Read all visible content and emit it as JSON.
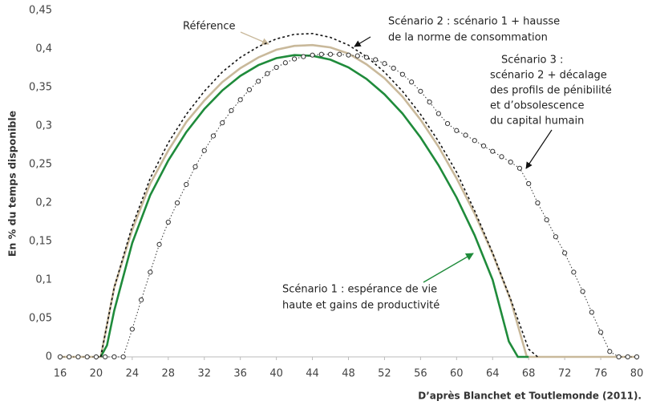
{
  "chart_data": {
    "type": "line",
    "y_label": "En % du temps disponible",
    "source": "D’après Blanchet et Toutlemonde (2011).",
    "xlim": [
      16,
      80
    ],
    "xticks": [
      16,
      20,
      24,
      28,
      32,
      36,
      40,
      44,
      48,
      52,
      56,
      60,
      64,
      68,
      72,
      76,
      80
    ],
    "ylim": [
      0,
      0.45
    ],
    "yticks": [
      0,
      {
        "value": 0.05,
        "label": "0,05"
      },
      {
        "value": 0.1,
        "label": "0,1"
      },
      {
        "value": 0.15,
        "label": "0,15"
      },
      {
        "value": 0.2,
        "label": "0,2"
      },
      {
        "value": 0.25,
        "label": "0,25"
      },
      {
        "value": 0.3,
        "label": "0,3"
      },
      {
        "value": 0.35,
        "label": "0,35"
      },
      {
        "value": 0.4,
        "label": "0,4"
      },
      {
        "value": 0.45,
        "label": "0,45"
      }
    ],
    "series": [
      {
        "color": "#c9b99b",
        "style": "solid",
        "x": [
          16,
          20.5,
          22,
          24,
          26,
          28,
          30,
          32,
          34,
          36,
          38,
          40,
          42,
          44,
          46,
          48,
          50,
          52,
          54,
          56,
          58,
          60,
          62,
          64,
          66,
          67.8,
          80
        ],
        "values": [
          0,
          0,
          0.09,
          0.165,
          0.225,
          0.268,
          0.305,
          0.333,
          0.357,
          0.375,
          0.389,
          0.399,
          0.404,
          0.405,
          0.402,
          0.394,
          0.38,
          0.362,
          0.338,
          0.308,
          0.273,
          0.232,
          0.186,
          0.134,
          0.074,
          0,
          0
        ]
      },
      {
        "color": "#1f8b3b",
        "style": "solid",
        "x": [
          20.5,
          21.2,
          22,
          24,
          26,
          28,
          30,
          32,
          34,
          36,
          38,
          40,
          42,
          44,
          46,
          48,
          50,
          52,
          54,
          56,
          58,
          60,
          62,
          64,
          65.8,
          66.8,
          68
        ],
        "values": [
          0,
          0.015,
          0.06,
          0.148,
          0.21,
          0.255,
          0.292,
          0.322,
          0.346,
          0.365,
          0.379,
          0.388,
          0.392,
          0.391,
          0.386,
          0.376,
          0.361,
          0.341,
          0.316,
          0.285,
          0.249,
          0.207,
          0.158,
          0.1,
          0.02,
          0,
          0
        ]
      },
      {
        "color": "#111111",
        "style": "dashed",
        "x": [
          20.5,
          22,
          24,
          26,
          28,
          30,
          32,
          34,
          36,
          38,
          40,
          42,
          44,
          46,
          48,
          50,
          52,
          54,
          56,
          58,
          60,
          62,
          64,
          66,
          68,
          69
        ],
        "values": [
          0,
          0.09,
          0.17,
          0.232,
          0.278,
          0.315,
          0.345,
          0.37,
          0.389,
          0.403,
          0.413,
          0.419,
          0.42,
          0.415,
          0.405,
          0.39,
          0.37,
          0.345,
          0.315,
          0.28,
          0.24,
          0.19,
          0.135,
          0.075,
          0.01,
          0
        ]
      },
      {
        "color": "#333333",
        "style": "dotted-markers",
        "x": [
          16,
          17,
          18,
          19,
          20,
          21,
          22,
          23,
          24,
          25,
          26,
          27,
          28,
          29,
          30,
          31,
          32,
          33,
          34,
          35,
          36,
          37,
          38,
          39,
          40,
          41,
          42,
          43,
          44,
          45,
          46,
          47,
          48,
          49,
          50,
          51,
          52,
          53,
          54,
          55,
          56,
          57,
          58,
          59,
          60,
          61,
          62,
          63,
          64,
          65,
          66,
          67,
          68,
          69,
          70,
          71,
          72,
          73,
          74,
          75,
          76,
          77,
          78,
          79,
          80
        ],
        "values": [
          0,
          0,
          0,
          0,
          0,
          0,
          0,
          0,
          0.036,
          0.074,
          0.11,
          0.146,
          0.175,
          0.2,
          0.224,
          0.247,
          0.268,
          0.287,
          0.304,
          0.32,
          0.334,
          0.347,
          0.358,
          0.368,
          0.376,
          0.382,
          0.387,
          0.39,
          0.392,
          0.393,
          0.393,
          0.393,
          0.392,
          0.391,
          0.389,
          0.386,
          0.381,
          0.375,
          0.367,
          0.357,
          0.345,
          0.331,
          0.316,
          0.303,
          0.294,
          0.288,
          0.281,
          0.274,
          0.267,
          0.26,
          0.253,
          0.245,
          0.225,
          0.2,
          0.178,
          0.156,
          0.135,
          0.11,
          0.085,
          0.058,
          0.032,
          0.007,
          0,
          0,
          0
        ]
      }
    ],
    "annotations": [
      {
        "lines": [
          "Référence"
        ]
      },
      {
        "lines": [
          "Scénario 2 : scénario 1 + hausse",
          "de la norme de consommation"
        ]
      },
      {
        "lines": [
          "Scénario 3 :",
          "scénario 2 + décalage",
          "des profils de pénibilité",
          "et  d’obsolescence",
          "du capital humain"
        ]
      },
      {
        "lines": [
          "Scénario 1 : espérance de vie",
          "haute et gains de productivité"
        ]
      }
    ]
  }
}
